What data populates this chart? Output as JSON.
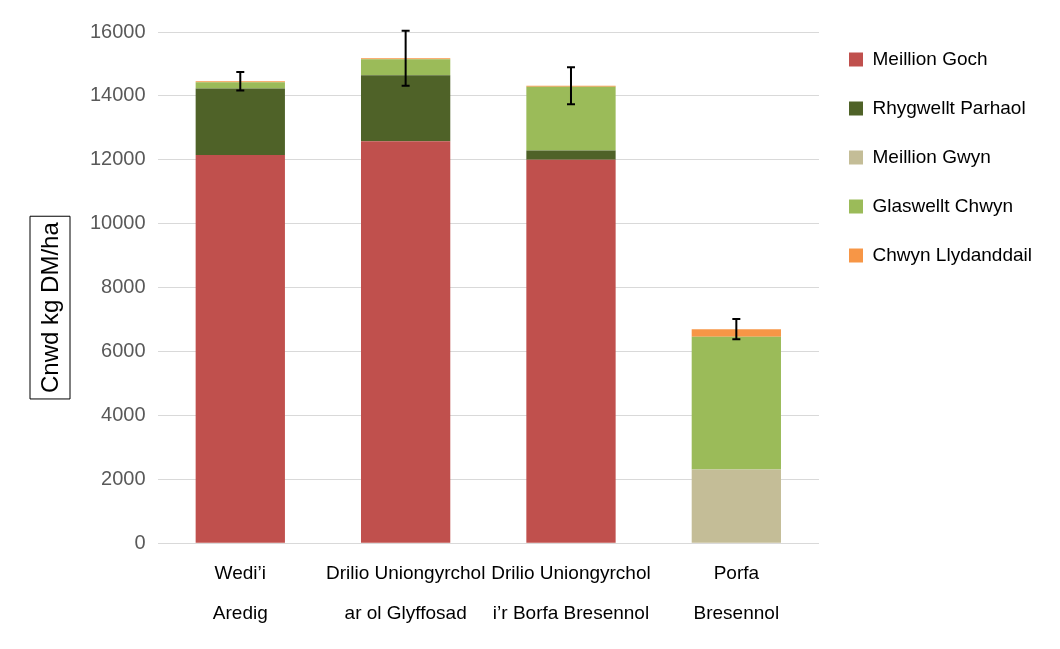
{
  "chart_data": {
    "type": "bar",
    "stacked": true,
    "ylabel": "Cnwd kg DM/ha",
    "categories": [
      "Wedi’i Aredig",
      "Drilio Uniongyrchol ar ol Glyffosad",
      "Drilio Uniongyrchol i’r Borfa Bresennol",
      "Porfa Bresennol"
    ],
    "series": [
      {
        "name": "Meillion Goch",
        "color": "#c0504d",
        "values": [
          12150,
          12580,
          12000,
          0
        ]
      },
      {
        "name": "Rhygwellt Parhaol",
        "color": "#4f6228",
        "values": [
          2080,
          2070,
          290,
          0
        ]
      },
      {
        "name": "Meillion Gwyn",
        "color": "#c4bd97",
        "values": [
          0,
          0,
          0,
          2310
        ]
      },
      {
        "name": "Glaswellt Chwyn",
        "color": "#9bbb59",
        "values": [
          200,
          500,
          2000,
          4150
        ]
      },
      {
        "name": "Chwyn Llydanddail",
        "color": "#f79646",
        "values": [
          30,
          30,
          30,
          240
        ],
        "errors": [
          290,
          860,
          580,
          320
        ]
      }
    ],
    "ylim": [
      0,
      16000
    ],
    "yticks": [
      0,
      2000,
      4000,
      6000,
      8000,
      10000,
      12000,
      14000,
      16000
    ],
    "grid": "y",
    "legend": "right"
  }
}
